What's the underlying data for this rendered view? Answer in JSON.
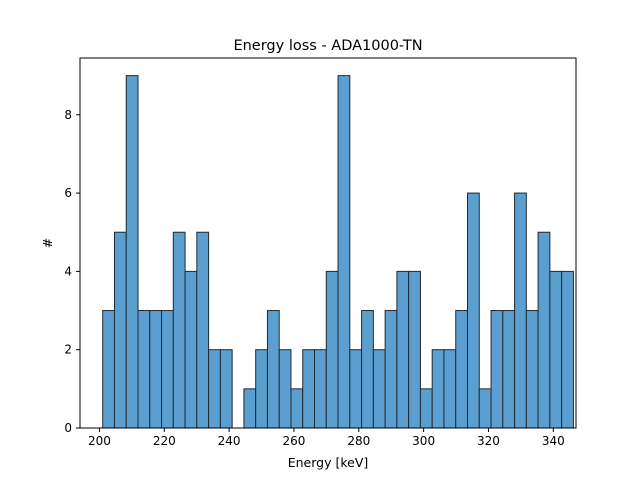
{
  "chart_data": {
    "type": "bar",
    "title": "Energy loss - ADA1000-TN",
    "xlabel": "Energy [keV]",
    "ylabel": "#",
    "xlim": [
      194.0,
      347.0
    ],
    "ylim": [
      0,
      9.45
    ],
    "xticks": [
      200,
      220,
      240,
      260,
      280,
      300,
      320,
      340
    ],
    "yticks": [
      0,
      2,
      4,
      6,
      8
    ],
    "bin_start": 201.0,
    "bin_width": 3.63,
    "counts": [
      3,
      5,
      9,
      3,
      3,
      3,
      5,
      4,
      5,
      2,
      2,
      0,
      1,
      2,
      3,
      2,
      1,
      2,
      2,
      4,
      9,
      2,
      3,
      2,
      3,
      4,
      4,
      1,
      2,
      2,
      3,
      6,
      1,
      3,
      3,
      6,
      3,
      5,
      4,
      4
    ],
    "grid": false,
    "bar_color": "#5b9fd0",
    "edge_color": "#1f2a33"
  }
}
